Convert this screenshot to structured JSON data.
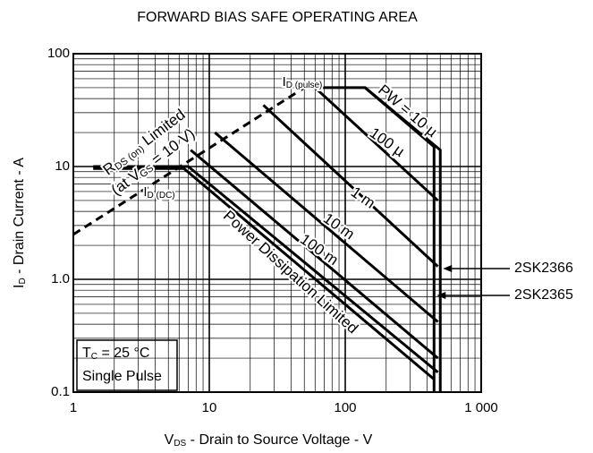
{
  "chart_data": {
    "type": "line",
    "title": "FORWARD BIAS SAFE OPERATING AREA",
    "x_label": [
      "V",
      "DS",
      " - Drain to Source Voltage - V"
    ],
    "y_label": [
      "I",
      "D",
      " - Drain Current - A"
    ],
    "log_x": true,
    "log_y": true,
    "grid": true,
    "xlim": [
      1,
      1000
    ],
    "ylim": [
      0.1,
      100
    ],
    "xticks": [
      1,
      10,
      100,
      {
        "value": 1000,
        "label": "1 000"
      }
    ],
    "yticks": [
      0.1,
      {
        "value": 1,
        "label": "1.0"
      },
      10,
      100
    ],
    "series": [
      {
        "color": "#000",
        "dash": true,
        "x": [
          1,
          50
        ],
        "values": [
          2.5,
          50
        ]
      },
      {
        "color": "#000",
        "x": [
          50,
          140,
          500,
          500
        ],
        "values": [
          50,
          50,
          14,
          0.1
        ]
      },
      {
        "color": "#000",
        "x": [
          140,
          450,
          450
        ],
        "values": [
          50,
          15,
          0.1
        ]
      },
      {
        "color": "#000",
        "x": [
          60,
          480
        ],
        "values": [
          50,
          5
        ]
      },
      {
        "color": "#000",
        "x": [
          25,
          480
        ],
        "values": [
          35,
          1.3
        ]
      },
      {
        "color": "#000",
        "x": [
          11,
          480
        ],
        "values": [
          20,
          0.42
        ]
      },
      {
        "color": "#000",
        "x": [
          7.3,
          480
        ],
        "values": [
          14,
          0.2
        ]
      },
      {
        "color": "#000",
        "x": [
          1.4,
          7,
          480
        ],
        "values": [
          10,
          10,
          0.15
        ]
      },
      {
        "color": "#000",
        "x": [
          1.4,
          6.5,
          450
        ],
        "values": [
          9.6,
          9.6,
          0.13
        ]
      }
    ],
    "annotations": [
      [
        "I",
        "D (pulse)"
      ],
      [
        "PW = 10 µ"
      ],
      [
        "100 µ"
      ],
      [
        "1 m"
      ],
      [
        "10 m"
      ],
      [
        "100 m"
      ],
      [
        "I",
        "D (DC)"
      ],
      [
        "R",
        "DS (on)",
        " Limited"
      ],
      [
        "(at V",
        "GS",
        " = 10 V)"
      ],
      [
        "Power Dissipation Limited"
      ],
      [
        "T",
        "C",
        " = 25 °C"
      ],
      [
        "Single Pulse"
      ],
      [
        "2SK2366"
      ],
      [
        "2SK2365"
      ]
    ]
  }
}
